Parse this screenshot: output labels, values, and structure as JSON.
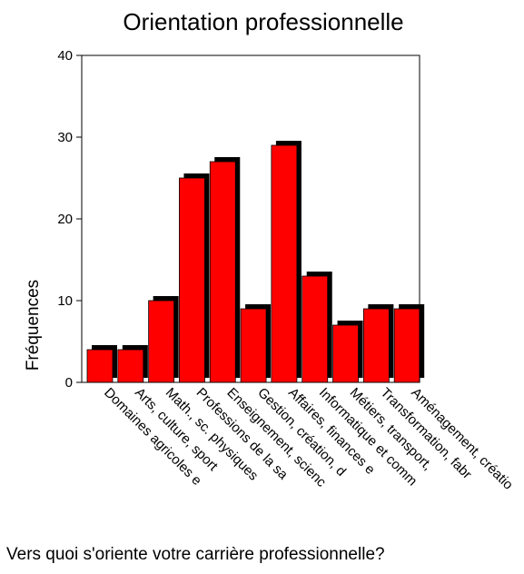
{
  "chart_data": {
    "type": "bar",
    "title": "Orientation professionnelle",
    "xlabel": "Vers quoi s'oriente votre carrière professionnelle?",
    "ylabel": "Fréquences",
    "ylim": [
      0,
      40
    ],
    "yticks": [
      0,
      10,
      20,
      30,
      40
    ],
    "grid": false,
    "categories": [
      "Domaines agricoles e",
      "Arts, culture, sport",
      "Math., sc. physiques",
      "Professions de la sa",
      "Enseignement, scienc",
      "Gestion, création, d",
      "Affaires, finances e",
      "Informatique et comm",
      "Métiers, transport,",
      "Transformation, fabr",
      "Aménagement, créatio"
    ],
    "values": [
      4,
      4,
      10,
      25,
      27,
      9,
      29,
      13,
      7,
      9,
      9
    ],
    "colors": {
      "bar": "#ff0000",
      "shadow": "#000000",
      "axis": "#000000"
    }
  }
}
